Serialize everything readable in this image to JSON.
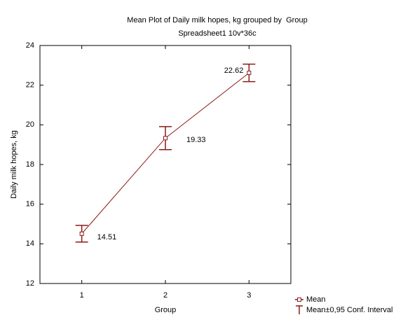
{
  "chart_data": {
    "type": "line",
    "title": "Mean Plot of Daily milk hopes, kg grouped by  Group",
    "subtitle": "Spreadsheet1 10v*36c",
    "x_label": "Group",
    "y_label": "Daily milk hopes, kg",
    "x": [
      1,
      2,
      3
    ],
    "series": [
      {
        "name": "Mean",
        "color": "#8b1a1a",
        "values": [
          14.51,
          19.33,
          22.62
        ],
        "errors": [
          0.42,
          0.58,
          0.44
        ],
        "error_name": "Mean±0,95 Conf. Interval"
      }
    ],
    "xlim": [
      0.5,
      3.5
    ],
    "xticks": [
      1,
      2,
      3
    ],
    "ylim": [
      12,
      24
    ],
    "yticks": [
      12,
      14,
      16,
      18,
      20,
      22,
      24
    ],
    "grid": false,
    "legend": "bottom-right"
  }
}
